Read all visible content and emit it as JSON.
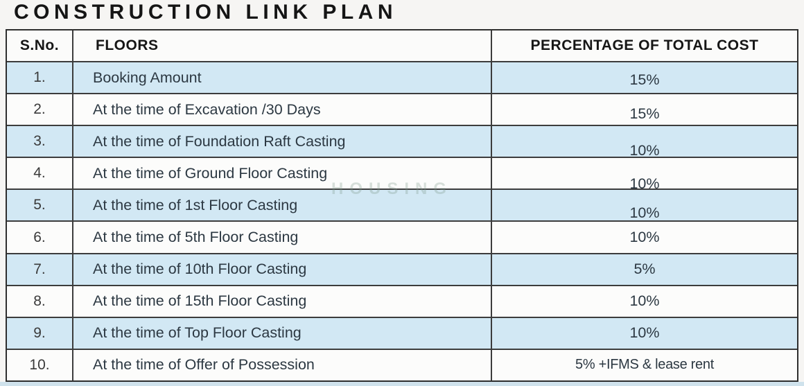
{
  "title": "CONSTRUCTION LINK PLAN",
  "watermark": "HOUSING",
  "colors": {
    "row_highlight_blue": "#d2e8f4",
    "row_white": "#fcfcfb",
    "border": "#3c3c3c",
    "text": "#2c3842"
  },
  "table": {
    "columns": {
      "sno": "S.No.",
      "floors": "FLOORS",
      "percentage": "PERCENTAGE OF TOTAL COST"
    },
    "rows": [
      {
        "sno": "1.",
        "floor": "Booking Amount",
        "pct": "15%"
      },
      {
        "sno": "2.",
        "floor": "At the time of Excavation /30 Days",
        "pct": "15%"
      },
      {
        "sno": "3.",
        "floor": "At the time of Foundation Raft Casting",
        "pct": "10%"
      },
      {
        "sno": "4.",
        "floor": "At the time of Ground Floor Casting",
        "pct": "10%"
      },
      {
        "sno": "5.",
        "floor": "At the time of 1st Floor Casting",
        "pct": "10%"
      },
      {
        "sno": "6.",
        "floor": "At the time of 5th Floor Casting",
        "pct": "10%"
      },
      {
        "sno": "7.",
        "floor": "At the time of 10th Floor Casting",
        "pct": "5%"
      },
      {
        "sno": "8.",
        "floor": "At the time of 15th Floor Casting",
        "pct": "10%"
      },
      {
        "sno": "9.",
        "floor": "At the time of Top Floor Casting",
        "pct": "10%"
      },
      {
        "sno": "10.",
        "floor": "At the time of Offer of Possession",
        "pct": "5% +IFMS & lease rent"
      }
    ]
  }
}
